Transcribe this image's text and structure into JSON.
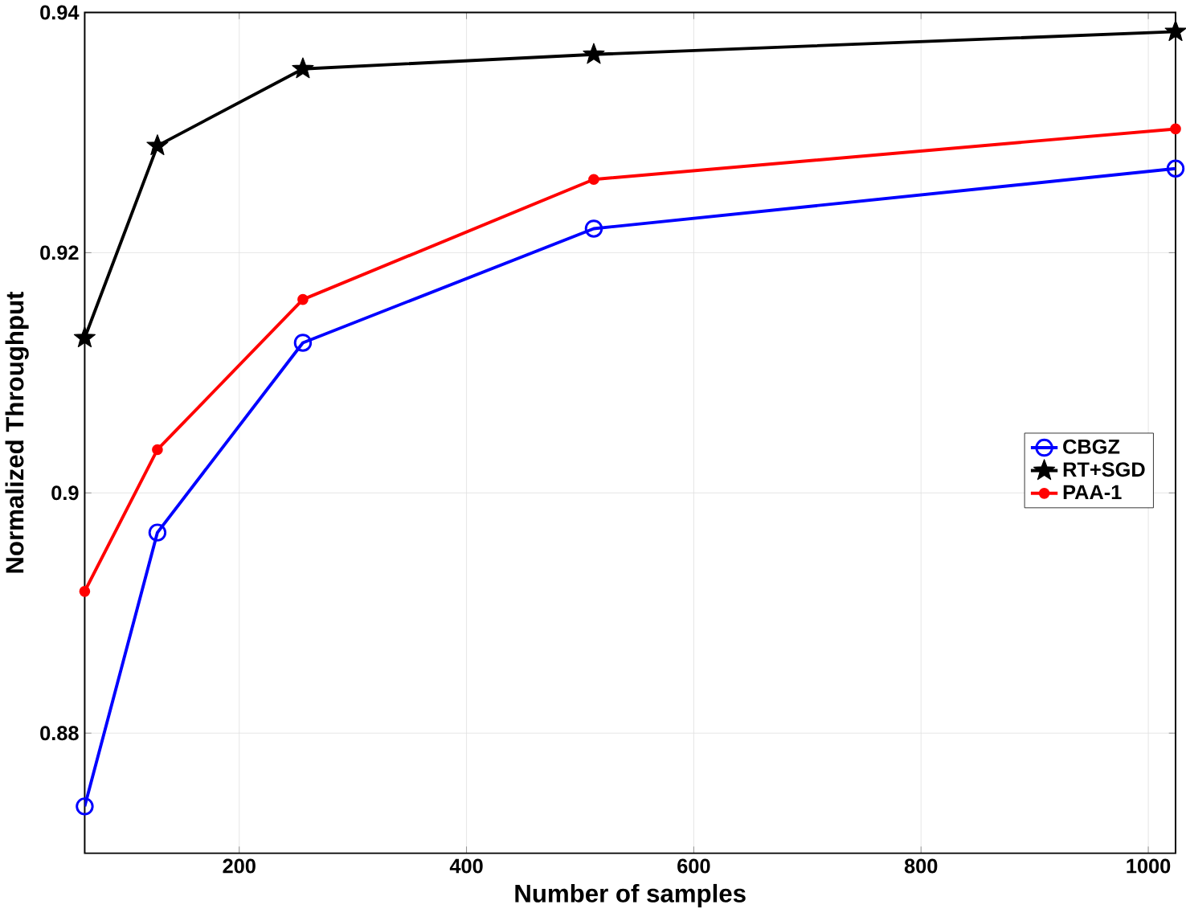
{
  "chart_data": {
    "type": "line",
    "xlabel": "Number of samples",
    "ylabel": "Normalized Throughput",
    "x": [
      64,
      128,
      256,
      512,
      1024
    ],
    "series": [
      {
        "name": "CBGZ",
        "color": "#0000ff",
        "marker": "circle",
        "values": [
          0.8739,
          0.8967,
          0.9125,
          0.922,
          0.927
        ]
      },
      {
        "name": "RT+SGD",
        "color": "#000000",
        "marker": "star",
        "values": [
          0.9129,
          0.9289,
          0.9353,
          0.9365,
          0.9384
        ]
      },
      {
        "name": "PAA-1",
        "color": "#ff0000",
        "marker": "circle",
        "values": [
          0.8918,
          0.9036,
          0.9161,
          0.9261,
          0.9303
        ]
      }
    ],
    "xlim": [
      64,
      1024
    ],
    "ylim": [
      0.87,
      0.94
    ],
    "xticks": [
      200,
      400,
      600,
      800,
      1000
    ],
    "yticks": [
      0.88,
      0.9,
      0.92,
      0.94
    ],
    "grid": true,
    "legend": "right",
    "line_style": "solid"
  }
}
